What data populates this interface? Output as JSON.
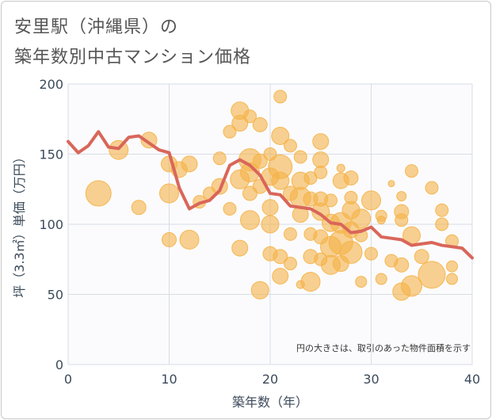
{
  "title_line1": "安里駅（沖縄県）の",
  "title_line2": "築年数別中古マンション価格",
  "chart_data": {
    "type": "scatter",
    "xlabel": "築年数（年）",
    "ylabel": "坪（3.3㎡）単価（万円）",
    "xlim": [
      0,
      40
    ],
    "ylim": [
      0,
      200
    ],
    "x_ticks": [
      0,
      10,
      20,
      30,
      40
    ],
    "y_ticks": [
      0,
      50,
      100,
      150,
      200
    ],
    "grid": true,
    "annotation": "円の大きさは、取引のあった物件面積を示す",
    "colors": {
      "bubble": "#f5b347",
      "line": "#d9665a",
      "grid": "#d7dde6",
      "plot_bg": "#fbfbfd"
    },
    "trend_line": {
      "x": [
        0,
        1,
        2,
        3,
        4,
        5,
        6,
        7,
        8,
        9,
        10,
        11,
        12,
        13,
        14,
        15,
        16,
        17,
        18,
        19,
        20,
        21,
        22,
        23,
        24,
        25,
        26,
        27,
        28,
        29,
        30,
        31,
        32,
        33,
        34,
        35,
        36,
        37,
        38,
        39,
        40
      ],
      "y": [
        159,
        151,
        156,
        166,
        155,
        154,
        162,
        163,
        158,
        153,
        151,
        126,
        111,
        115,
        117,
        124,
        142,
        146,
        142,
        135,
        122,
        121,
        113,
        112,
        111,
        107,
        101,
        100,
        94,
        95,
        98,
        91,
        90,
        89,
        85,
        86,
        87,
        85,
        84,
        83,
        76
      ]
    },
    "bubbles": [
      {
        "x": 3,
        "y": 122,
        "s": 16
      },
      {
        "x": 5,
        "y": 153,
        "s": 12
      },
      {
        "x": 7,
        "y": 112,
        "s": 9
      },
      {
        "x": 8,
        "y": 160,
        "s": 10
      },
      {
        "x": 10,
        "y": 143,
        "s": 10
      },
      {
        "x": 10,
        "y": 122,
        "s": 12
      },
      {
        "x": 10,
        "y": 89,
        "s": 9
      },
      {
        "x": 11,
        "y": 139,
        "s": 10
      },
      {
        "x": 12,
        "y": 143,
        "s": 10
      },
      {
        "x": 12,
        "y": 89,
        "s": 12
      },
      {
        "x": 13,
        "y": 116,
        "s": 8
      },
      {
        "x": 14,
        "y": 122,
        "s": 8
      },
      {
        "x": 15,
        "y": 147,
        "s": 8
      },
      {
        "x": 15,
        "y": 127,
        "s": 10
      },
      {
        "x": 16,
        "y": 166,
        "s": 8
      },
      {
        "x": 16,
        "y": 111,
        "s": 8
      },
      {
        "x": 17,
        "y": 181,
        "s": 11
      },
      {
        "x": 17,
        "y": 172,
        "s": 10
      },
      {
        "x": 17,
        "y": 132,
        "s": 12
      },
      {
        "x": 17,
        "y": 83,
        "s": 10
      },
      {
        "x": 18,
        "y": 177,
        "s": 8
      },
      {
        "x": 18,
        "y": 146,
        "s": 14
      },
      {
        "x": 18,
        "y": 137,
        "s": 12
      },
      {
        "x": 18,
        "y": 122,
        "s": 9
      },
      {
        "x": 18,
        "y": 103,
        "s": 12
      },
      {
        "x": 19,
        "y": 171,
        "s": 9
      },
      {
        "x": 19,
        "y": 145,
        "s": 9
      },
      {
        "x": 19,
        "y": 127,
        "s": 9
      },
      {
        "x": 19,
        "y": 53,
        "s": 11
      },
      {
        "x": 20,
        "y": 150,
        "s": 8
      },
      {
        "x": 20,
        "y": 134,
        "s": 11
      },
      {
        "x": 20,
        "y": 112,
        "s": 10
      },
      {
        "x": 20,
        "y": 100,
        "s": 11
      },
      {
        "x": 20,
        "y": 79,
        "s": 9
      },
      {
        "x": 21,
        "y": 191,
        "s": 8
      },
      {
        "x": 21,
        "y": 163,
        "s": 11
      },
      {
        "x": 21,
        "y": 141,
        "s": 15
      },
      {
        "x": 21,
        "y": 131,
        "s": 11
      },
      {
        "x": 21,
        "y": 77,
        "s": 9
      },
      {
        "x": 21,
        "y": 63,
        "s": 10
      },
      {
        "x": 22,
        "y": 156,
        "s": 8
      },
      {
        "x": 22,
        "y": 122,
        "s": 9
      },
      {
        "x": 22,
        "y": 93,
        "s": 8
      },
      {
        "x": 22,
        "y": 72,
        "s": 8
      },
      {
        "x": 23,
        "y": 148,
        "s": 8
      },
      {
        "x": 23,
        "y": 131,
        "s": 11
      },
      {
        "x": 23,
        "y": 119,
        "s": 13
      },
      {
        "x": 23,
        "y": 107,
        "s": 10
      },
      {
        "x": 23,
        "y": 57,
        "s": 5
      },
      {
        "x": 24,
        "y": 133,
        "s": 8
      },
      {
        "x": 24,
        "y": 118,
        "s": 9
      },
      {
        "x": 24,
        "y": 93,
        "s": 8
      },
      {
        "x": 24,
        "y": 77,
        "s": 9
      },
      {
        "x": 24,
        "y": 59,
        "s": 12
      },
      {
        "x": 25,
        "y": 159,
        "s": 10
      },
      {
        "x": 25,
        "y": 146,
        "s": 10
      },
      {
        "x": 25,
        "y": 137,
        "s": 8
      },
      {
        "x": 25,
        "y": 118,
        "s": 9
      },
      {
        "x": 25,
        "y": 109,
        "s": 11
      },
      {
        "x": 25,
        "y": 91,
        "s": 9
      },
      {
        "x": 25,
        "y": 75,
        "s": 8
      },
      {
        "x": 26,
        "y": 117,
        "s": 8
      },
      {
        "x": 26,
        "y": 101,
        "s": 11
      },
      {
        "x": 26,
        "y": 84,
        "s": 13
      },
      {
        "x": 26,
        "y": 71,
        "s": 12
      },
      {
        "x": 27,
        "y": 140,
        "s": 5
      },
      {
        "x": 27,
        "y": 131,
        "s": 10
      },
      {
        "x": 27,
        "y": 101,
        "s": 13
      },
      {
        "x": 27,
        "y": 87,
        "s": 15
      },
      {
        "x": 27,
        "y": 72,
        "s": 10
      },
      {
        "x": 28,
        "y": 133,
        "s": 9
      },
      {
        "x": 28,
        "y": 119,
        "s": 8
      },
      {
        "x": 28,
        "y": 110,
        "s": 11
      },
      {
        "x": 28,
        "y": 96,
        "s": 10
      },
      {
        "x": 28,
        "y": 80,
        "s": 14
      },
      {
        "x": 29,
        "y": 104,
        "s": 12
      },
      {
        "x": 29,
        "y": 92,
        "s": 8
      },
      {
        "x": 29,
        "y": 59,
        "s": 7
      },
      {
        "x": 30,
        "y": 117,
        "s": 12
      },
      {
        "x": 30,
        "y": 79,
        "s": 8
      },
      {
        "x": 31,
        "y": 106,
        "s": 7
      },
      {
        "x": 31,
        "y": 103,
        "s": 5
      },
      {
        "x": 31,
        "y": 61,
        "s": 7
      },
      {
        "x": 32,
        "y": 129,
        "s": 4
      },
      {
        "x": 32,
        "y": 74,
        "s": 8
      },
      {
        "x": 33,
        "y": 120,
        "s": 6
      },
      {
        "x": 33,
        "y": 109,
        "s": 9
      },
      {
        "x": 33,
        "y": 103,
        "s": 8
      },
      {
        "x": 33,
        "y": 71,
        "s": 9
      },
      {
        "x": 33,
        "y": 52,
        "s": 11
      },
      {
        "x": 34,
        "y": 138,
        "s": 8
      },
      {
        "x": 34,
        "y": 92,
        "s": 11
      },
      {
        "x": 34,
        "y": 56,
        "s": 13
      },
      {
        "x": 35,
        "y": 77,
        "s": 9
      },
      {
        "x": 36,
        "y": 126,
        "s": 8
      },
      {
        "x": 36,
        "y": 64,
        "s": 17
      },
      {
        "x": 37,
        "y": 110,
        "s": 8
      },
      {
        "x": 37,
        "y": 100,
        "s": 8
      },
      {
        "x": 38,
        "y": 88,
        "s": 8
      },
      {
        "x": 38,
        "y": 70,
        "s": 7
      },
      {
        "x": 38,
        "y": 61,
        "s": 7
      }
    ]
  }
}
